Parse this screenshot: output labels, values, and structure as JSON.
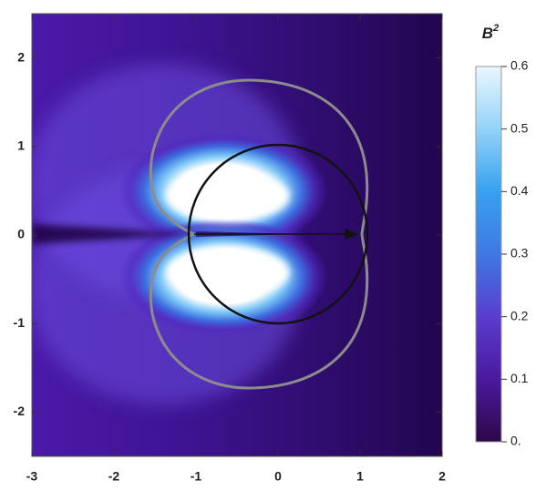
{
  "chart_data": {
    "type": "density",
    "xlim": [
      -3,
      2
    ],
    "ylim": [
      -2.5,
      2.5
    ],
    "xticks": [
      -3,
      -2,
      -1,
      0,
      1,
      2
    ],
    "yticks": [
      -2,
      -1,
      0,
      1,
      2
    ],
    "colorbar_title": "B",
    "colorbar_title_superscript": "2",
    "colorbar_lim": [
      0,
      0.6
    ],
    "colorbar_ticks": [
      {
        "value": 0,
        "label": "0."
      },
      0.1,
      0.2,
      0.3,
      0.4,
      0.5,
      0.6
    ]
  }
}
